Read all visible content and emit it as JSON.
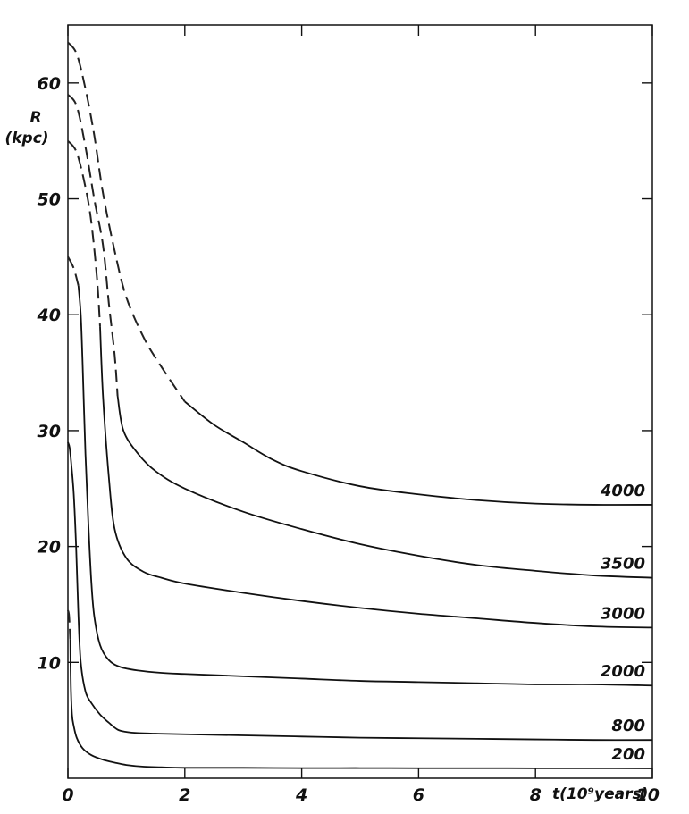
{
  "chart_data": {
    "type": "line",
    "title": "",
    "xlabel": "t(10⁹years)",
    "ylabel": "R",
    "ylabel_unit": "(kpc)",
    "xlim": [
      0,
      10
    ],
    "ylim": [
      0,
      65
    ],
    "x_ticks": [
      0,
      2,
      4,
      6,
      8,
      10
    ],
    "x_tick_labels": [
      "0",
      "2",
      "4",
      "6",
      "8",
      "10"
    ],
    "y_ticks": [
      10,
      20,
      30,
      40,
      50,
      60
    ],
    "y_tick_labels": [
      "10",
      "20",
      "30",
      "40",
      "50",
      "60"
    ],
    "grid": false,
    "legend": "none",
    "series": [
      {
        "name": "4000",
        "dashed_until": 2.0,
        "x": [
          0,
          0.15,
          0.3,
          0.45,
          0.6,
          0.8,
          1.0,
          1.3,
          1.6,
          2.0,
          2.5,
          3.0,
          3.5,
          4.0,
          5.0,
          6.0,
          7.0,
          8.0,
          9.0,
          10.0
        ],
        "y": [
          63.5,
          62.5,
          59.5,
          55.5,
          50.5,
          45.5,
          41.5,
          38.0,
          35.5,
          32.5,
          30.5,
          29.0,
          27.5,
          26.5,
          25.2,
          24.5,
          24.0,
          23.7,
          23.6,
          23.6
        ]
      },
      {
        "name": "3500",
        "dashed_until": 0.85,
        "x": [
          0,
          0.15,
          0.3,
          0.45,
          0.6,
          0.7,
          0.8,
          0.85,
          0.95,
          1.2,
          1.5,
          2.0,
          3.0,
          4.0,
          5.0,
          6.0,
          7.0,
          8.0,
          9.0,
          10.0
        ],
        "y": [
          59.0,
          58.0,
          54.5,
          50.0,
          46.0,
          41.0,
          36.5,
          33.0,
          30.0,
          28.0,
          26.5,
          25.0,
          23.0,
          21.5,
          20.2,
          19.2,
          18.4,
          17.9,
          17.5,
          17.3
        ]
      },
      {
        "name": "3000",
        "dashed_until": 0.55,
        "x": [
          0,
          0.15,
          0.3,
          0.4,
          0.5,
          0.55,
          0.6,
          0.7,
          0.8,
          1.0,
          1.3,
          1.6,
          2.0,
          3.0,
          4.0,
          5.0,
          6.0,
          7.0,
          8.0,
          9.0,
          10.0
        ],
        "y": [
          55.0,
          54.0,
          51.0,
          48.0,
          43.0,
          39.0,
          33.0,
          26.0,
          21.5,
          19.0,
          17.8,
          17.3,
          16.8,
          16.0,
          15.3,
          14.7,
          14.2,
          13.8,
          13.4,
          13.1,
          13.0
        ]
      },
      {
        "name": "2000",
        "dashed_until": 0.18,
        "x": [
          0,
          0.1,
          0.18,
          0.22,
          0.25,
          0.3,
          0.35,
          0.4,
          0.45,
          0.55,
          0.7,
          0.9,
          1.2,
          1.6,
          2.0,
          3.0,
          4.0,
          5.0,
          6.0,
          7.0,
          8.0,
          9.0,
          10.0
        ],
        "y": [
          45.0,
          44.0,
          42.5,
          40.0,
          36.0,
          28.0,
          22.0,
          17.0,
          14.0,
          11.5,
          10.2,
          9.6,
          9.3,
          9.1,
          9.0,
          8.8,
          8.6,
          8.4,
          8.3,
          8.2,
          8.1,
          8.1,
          8.0
        ]
      },
      {
        "name": "800",
        "dashed_until": 0,
        "x": [
          0,
          0.03,
          0.06,
          0.1,
          0.14,
          0.18,
          0.22,
          0.3,
          0.4,
          0.55,
          0.7,
          0.85,
          1.0,
          1.2,
          1.5,
          2.0,
          3.0,
          4.0,
          5.0,
          6.0,
          7.0,
          8.0,
          9.0,
          10.0
        ],
        "y": [
          29.0,
          28.5,
          27.0,
          24.5,
          20.0,
          14.0,
          10.0,
          7.5,
          6.5,
          5.5,
          4.8,
          4.2,
          4.0,
          3.9,
          3.85,
          3.8,
          3.7,
          3.6,
          3.5,
          3.45,
          3.4,
          3.35,
          3.3,
          3.3
        ]
      },
      {
        "name": "200",
        "dashed_until": 0.04,
        "x": [
          0,
          0.02,
          0.04,
          0.05,
          0.07,
          0.1,
          0.15,
          0.25,
          0.4,
          0.6,
          0.8,
          1.0,
          1.3,
          1.6,
          2.0,
          3.0,
          4.0,
          5.0,
          6.0,
          7.0,
          8.0,
          9.0,
          10.0
        ],
        "y": [
          14.5,
          14.0,
          12.0,
          8.0,
          5.5,
          4.5,
          3.5,
          2.6,
          2.0,
          1.6,
          1.35,
          1.15,
          1.0,
          0.95,
          0.9,
          0.9,
          0.88,
          0.88,
          0.87,
          0.87,
          0.86,
          0.86,
          0.85
        ]
      }
    ]
  }
}
